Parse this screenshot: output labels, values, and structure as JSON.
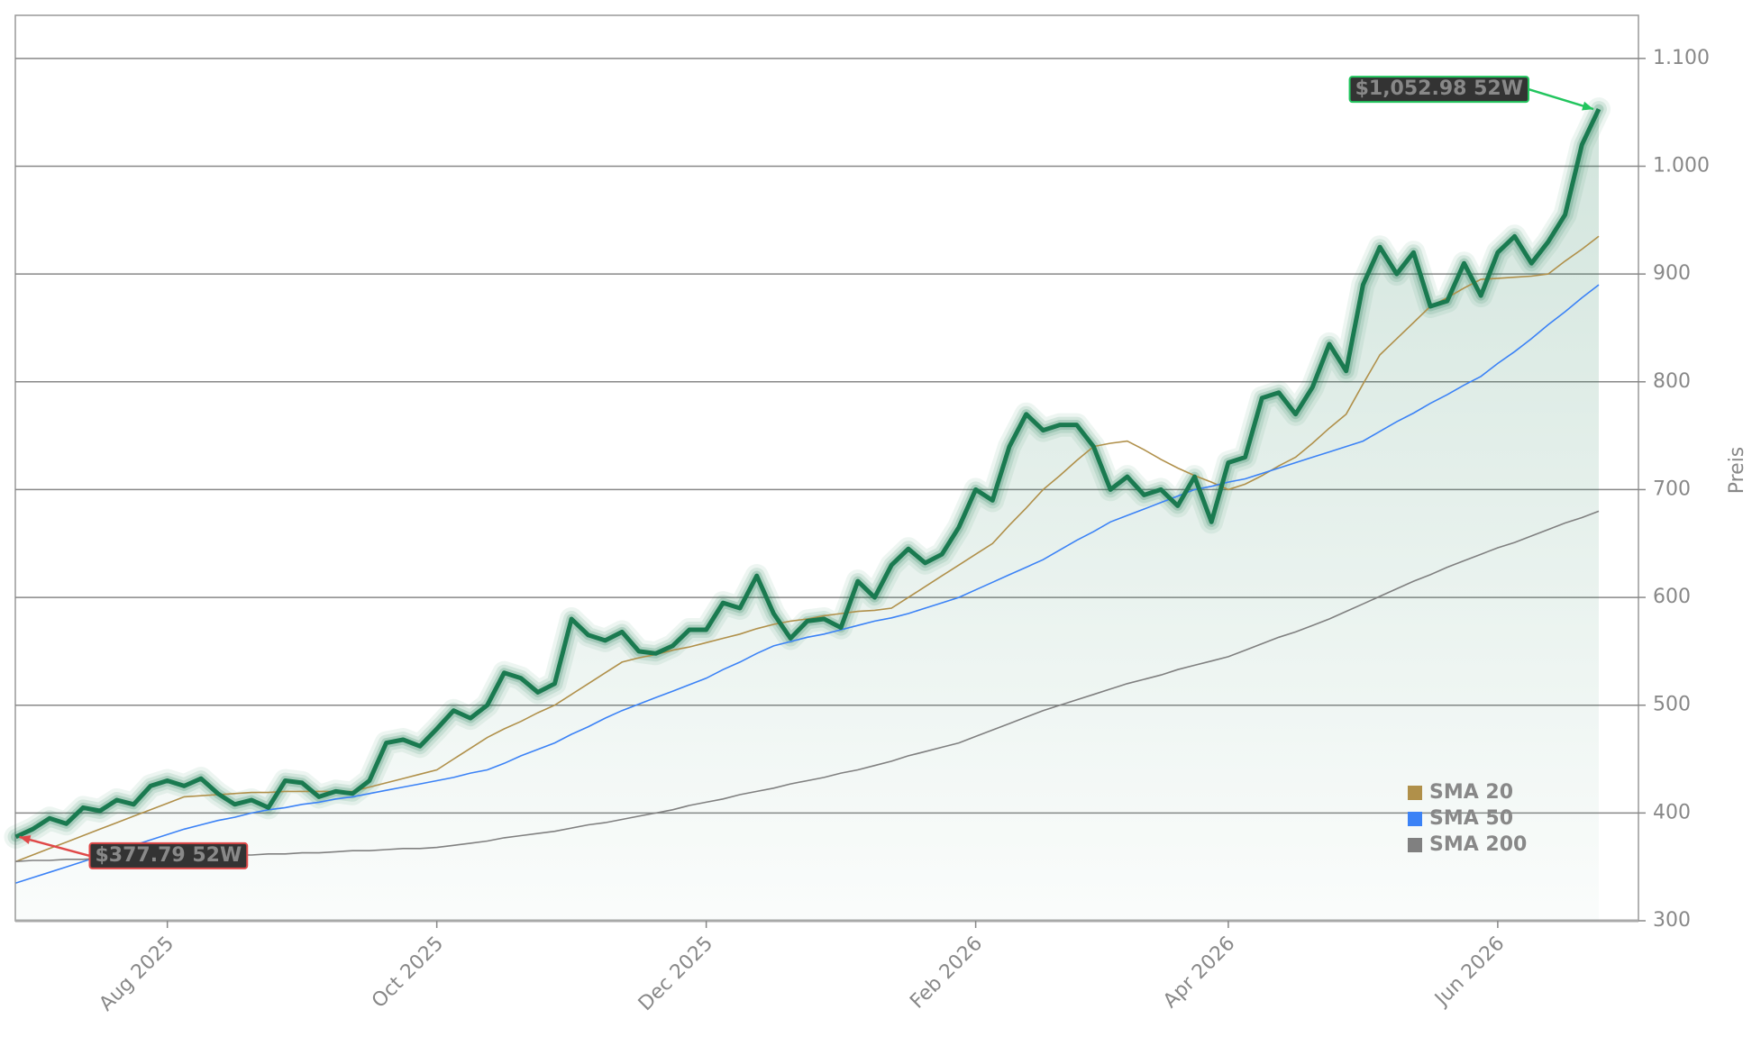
{
  "chart_data": {
    "type": "line",
    "y_label": "Preis",
    "categories": [
      null,
      null,
      null,
      null,
      null,
      null,
      null,
      null,
      null,
      "Aug 2025",
      null,
      null,
      null,
      null,
      null,
      null,
      null,
      null,
      null,
      null,
      null,
      null,
      null,
      null,
      null,
      "Oct 2025",
      null,
      null,
      null,
      null,
      null,
      null,
      null,
      null,
      null,
      null,
      null,
      null,
      null,
      null,
      null,
      "Dec 2025",
      null,
      null,
      null,
      null,
      null,
      null,
      null,
      null,
      null,
      null,
      null,
      null,
      null,
      null,
      null,
      "Feb 2026",
      null,
      null,
      null,
      null,
      null,
      null,
      null,
      null,
      null,
      null,
      null,
      null,
      null,
      null,
      "Apr 2026",
      null,
      null,
      null,
      null,
      null,
      null,
      null,
      null,
      null,
      null,
      null,
      null,
      null,
      null,
      null,
      "Jun 2026",
      null,
      null,
      null,
      null,
      null,
      null
    ],
    "series": [
      {
        "color": "#1a7a50",
        "values": [
          377.79,
          385,
          395,
          390,
          405,
          402,
          412,
          408,
          425,
          430,
          425,
          432,
          418,
          408,
          412,
          405,
          430,
          428,
          415,
          420,
          418,
          430,
          465,
          468,
          462,
          478,
          495,
          488,
          500,
          530,
          525,
          512,
          520,
          580,
          565,
          560,
          568,
          550,
          548,
          555,
          570,
          570,
          595,
          590,
          620,
          585,
          562,
          578,
          580,
          572,
          615,
          600,
          630,
          645,
          632,
          640,
          665,
          700,
          690,
          740,
          770,
          755,
          760,
          760,
          740,
          700,
          712,
          695,
          700,
          685,
          712,
          670,
          725,
          730,
          785,
          790,
          770,
          795,
          835,
          810,
          890,
          925,
          900,
          920,
          870,
          875,
          910,
          880,
          920,
          935,
          910,
          930,
          955,
          1020,
          1052.98
        ]
      },
      {
        "name": "SMA 20",
        "color": "#b0904a",
        "values": [
          355,
          361,
          367,
          373,
          379,
          385,
          391,
          397,
          403,
          409,
          415,
          416,
          417,
          418,
          419,
          419,
          420,
          420,
          420,
          420,
          420,
          424,
          428,
          432,
          436,
          440,
          450,
          460,
          470,
          478,
          485,
          493,
          500,
          510,
          520,
          530,
          540,
          544,
          547,
          551,
          554,
          558,
          562,
          566,
          571,
          575,
          578,
          580,
          583,
          585,
          587,
          588,
          590,
          600,
          610,
          620,
          630,
          640,
          650,
          667,
          683,
          700,
          713,
          727,
          740,
          743,
          745,
          737,
          728,
          720,
          713,
          707,
          700,
          705,
          713,
          722,
          730,
          743,
          757,
          770,
          798,
          825,
          840,
          855,
          870,
          878,
          887,
          895,
          896,
          897,
          898,
          900,
          912,
          923,
          935
        ]
      },
      {
        "name": "SMA 50",
        "color": "#3b82f6",
        "values": [
          335,
          340,
          345,
          350,
          355,
          360,
          365,
          370,
          375,
          380,
          385,
          389,
          393,
          396,
          400,
          403,
          405,
          408,
          410,
          413,
          415,
          418,
          421,
          424,
          427,
          430,
          433,
          437,
          440,
          446,
          453,
          459,
          465,
          473,
          480,
          488,
          495,
          501,
          507,
          513,
          519,
          525,
          533,
          540,
          548,
          555,
          559,
          563,
          566,
          570,
          574,
          578,
          581,
          585,
          590,
          595,
          600,
          607,
          614,
          621,
          628,
          635,
          644,
          653,
          661,
          670,
          676,
          682,
          688,
          694,
          700,
          703,
          707,
          710,
          715,
          720,
          725,
          730,
          735,
          740,
          745,
          754,
          763,
          771,
          780,
          788,
          797,
          805,
          817,
          828,
          840,
          853,
          865,
          878,
          890
        ]
      },
      {
        "name": "SMA 200",
        "color": "#808080",
        "values": [
          355,
          356,
          356,
          357,
          357,
          358,
          358,
          359,
          359,
          360,
          360,
          360,
          361,
          361,
          361,
          362,
          362,
          363,
          363,
          364,
          365,
          365,
          366,
          367,
          367,
          368,
          370,
          372,
          374,
          377,
          379,
          381,
          383,
          386,
          389,
          391,
          394,
          397,
          400,
          403,
          407,
          410,
          413,
          417,
          420,
          423,
          427,
          430,
          433,
          437,
          440,
          444,
          448,
          453,
          457,
          461,
          465,
          471,
          477,
          483,
          489,
          495,
          500,
          505,
          510,
          515,
          520,
          524,
          528,
          533,
          537,
          541,
          545,
          551,
          557,
          563,
          568,
          574,
          580,
          587,
          594,
          601,
          608,
          615,
          621,
          628,
          634,
          640,
          646,
          651,
          657,
          663,
          669,
          674,
          680
        ]
      }
    ],
    "ylim": [
      300,
      1140
    ],
    "yticks": [
      300,
      400,
      500,
      600,
      700,
      800,
      900,
      {
        "value": 1000,
        "label": "1.000"
      },
      {
        "value": 1100,
        "label": "1.100"
      }
    ],
    "grid": true,
    "legend": "lower right",
    "annotations": [
      {
        "text": "$1,052.98 52W",
        "color": "#22c55e",
        "target": "max"
      },
      {
        "text": "$377.79 52W",
        "color": "#e04848",
        "target": "min"
      }
    ]
  }
}
